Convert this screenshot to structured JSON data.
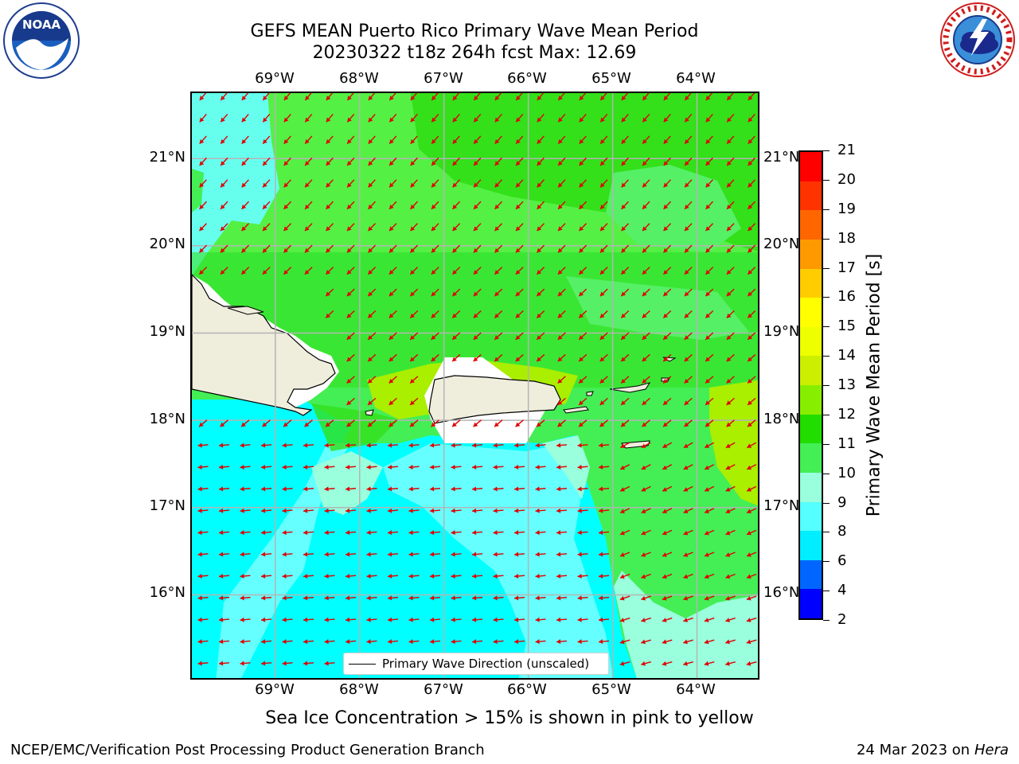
{
  "header": {
    "title_line1": "GEFS MEAN Puerto Rico Primary Wave Mean Period",
    "title_line2": "20230322 t18z 264h fcst   Max: 12.69"
  },
  "logos": {
    "left": {
      "icon": "noaa-logo-icon",
      "text": "NOAA",
      "ring_text": "NATIONAL OCEANIC AND ATMOSPHERIC ADMINISTRATION · U.S. DEPARTMENT OF COMMERCE"
    },
    "right": {
      "icon": "nws-logo-icon",
      "ring_text": "NATIONAL WEATHER SERVICE"
    }
  },
  "axes": {
    "lon_ticks": [
      "69°W",
      "68°W",
      "67°W",
      "66°W",
      "65°W",
      "64°W"
    ],
    "lat_ticks": [
      "21°N",
      "20°N",
      "19°N",
      "18°N",
      "17°N",
      "16°N"
    ],
    "lon_values": [
      -69,
      -68,
      -67,
      -66,
      -65,
      -64
    ],
    "lat_values": [
      21,
      20,
      19,
      18,
      17,
      16
    ],
    "lon_range": [
      -69.99,
      -63.24
    ],
    "lat_range": [
      15.01,
      21.75
    ],
    "grid": true
  },
  "legend": {
    "label": "Primary Wave Direction (unscaled)",
    "line_color": "#000000"
  },
  "arrows": {
    "color": "#e00000",
    "direction_north": "northeast-to-southwest",
    "direction_south": "east-to-west"
  },
  "colorbar": {
    "title": "Primary Wave Mean Period [s]",
    "labels": [
      "2",
      "4",
      "6",
      "8",
      "9",
      "10",
      "11",
      "12",
      "13",
      "14",
      "15",
      "16",
      "17",
      "18",
      "19",
      "20",
      "21"
    ],
    "colors": [
      "#0000ff",
      "#0066ff",
      "#00eeff",
      "#55ffff",
      "#99ffdd",
      "#44ee55",
      "#22dd00",
      "#88ee00",
      "#ccee00",
      "#eeff00",
      "#ffff00",
      "#ffcc00",
      "#ff9900",
      "#ff6600",
      "#ff3300",
      "#ff0000"
    ]
  },
  "chart_data": {
    "type": "heatmap",
    "variable": "Primary Wave Mean Period",
    "units": "s",
    "max_value": 12.69,
    "regions": [
      {
        "area": "north of 18.5°N",
        "period_s": "10-11"
      },
      {
        "area": "south of Hispaniola and Puerto Rico",
        "period_s": "6-9"
      },
      {
        "area": "east near 63.5°W, 17-18°N",
        "period_s": "12-13"
      },
      {
        "area": "along Puerto Rico north coast",
        "period_s": "12-13"
      }
    ]
  },
  "notes": {
    "ice": "Sea Ice Concentration > 15% is shown in pink to yellow"
  },
  "footer": {
    "left": "NCEP/EMC/Verification Post Processing Product Generation Branch",
    "right_date": "24 Mar 2023 on",
    "right_host": "Hera"
  },
  "map_colors": {
    "land": "#efeddc",
    "no_data": "#ffffff",
    "grid": "#b4b4b4",
    "coast": "#000000"
  }
}
